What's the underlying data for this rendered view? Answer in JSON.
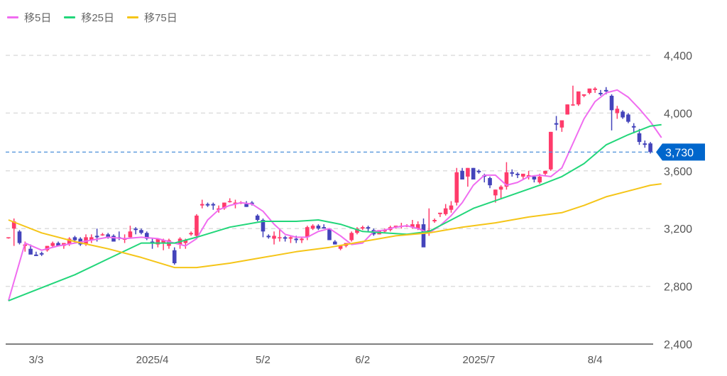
{
  "legend": [
    {
      "label": "移5日",
      "color": "#f06cf0"
    },
    {
      "label": "移25日",
      "color": "#22d67a"
    },
    {
      "label": "移75日",
      "color": "#f5c518"
    }
  ],
  "colors": {
    "up": "#ff3b6b",
    "down": "#4444bb",
    "grid": "#dddddd",
    "axis": "#555555",
    "current": "#0066cc",
    "current_line": "#4a90d9"
  },
  "current_price": {
    "value": 3730,
    "label": "3,730"
  },
  "chart_data": {
    "type": "candlestick",
    "title": "",
    "ylim": [
      2400,
      4400
    ],
    "yticks": [
      2400,
      2800,
      3200,
      3600,
      4000,
      4400
    ],
    "ytick_labels": [
      "2,400",
      "2,800",
      "3,200",
      "3,600",
      "4,000",
      "4,400"
    ],
    "xtick_labels": [
      {
        "label": "3/3",
        "index": 5
      },
      {
        "label": "2025/4",
        "index": 26
      },
      {
        "label": "5/2",
        "index": 46
      },
      {
        "label": "6/2",
        "index": 64
      },
      {
        "label": "2025/7",
        "index": 85
      },
      {
        "label": "8/4",
        "index": 106
      }
    ],
    "grid": true,
    "legend_position": "top-left",
    "candles": [
      [
        3140,
        3140,
        3130,
        3140
      ],
      [
        3200,
        3270,
        3080,
        3250
      ],
      [
        3180,
        3190,
        3090,
        3100
      ],
      [
        3080,
        3110,
        3040,
        3090
      ],
      [
        3060,
        3090,
        3030,
        3020
      ],
      [
        3020,
        3040,
        3010,
        3010
      ],
      [
        3030,
        3040,
        3010,
        3020
      ],
      [
        3050,
        3080,
        3040,
        3080
      ],
      [
        3080,
        3110,
        3070,
        3100
      ],
      [
        3100,
        3110,
        3080,
        3080
      ],
      [
        3080,
        3100,
        3060,
        3100
      ],
      [
        3090,
        3140,
        3080,
        3130
      ],
      [
        3140,
        3150,
        3100,
        3120
      ],
      [
        3130,
        3140,
        3080,
        3090
      ],
      [
        3090,
        3160,
        3080,
        3140
      ],
      [
        3120,
        3160,
        3100,
        3140
      ],
      [
        3150,
        3200,
        3110,
        3140
      ],
      [
        3160,
        3170,
        3150,
        3160
      ],
      [
        3160,
        3170,
        3130,
        3140
      ],
      [
        3150,
        3160,
        3110,
        3110
      ],
      [
        3140,
        3180,
        3120,
        3130
      ],
      [
        3130,
        3160,
        3100,
        3130
      ],
      [
        3140,
        3220,
        3130,
        3180
      ],
      [
        3200,
        3210,
        3160,
        3190
      ],
      [
        3190,
        3200,
        3160,
        3170
      ],
      [
        3170,
        3180,
        3120,
        3130
      ],
      [
        3110,
        3130,
        3060,
        3100
      ],
      [
        3090,
        3130,
        3070,
        3130
      ],
      [
        3100,
        3130,
        3050,
        3120
      ],
      [
        3080,
        3130,
        3060,
        3120
      ],
      [
        3050,
        3070,
        2950,
        2960
      ],
      [
        3090,
        3140,
        3060,
        3130
      ],
      [
        3100,
        3130,
        3060,
        3120
      ],
      [
        3160,
        3180,
        3150,
        3170
      ],
      [
        3150,
        3300,
        3140,
        3290
      ],
      [
        3360,
        3400,
        3340,
        3370
      ],
      [
        3370,
        3380,
        3350,
        3360
      ],
      [
        3370,
        3380,
        3330,
        3360
      ],
      [
        3330,
        3360,
        3310,
        3340
      ],
      [
        3340,
        3380,
        3330,
        3380
      ],
      [
        3390,
        3410,
        3380,
        3390
      ],
      [
        3380,
        3400,
        3340,
        3380
      ],
      [
        3380,
        3390,
        3370,
        3380
      ],
      [
        3370,
        3390,
        3350,
        3350
      ],
      [
        3380,
        3390,
        3360,
        3370
      ],
      [
        3290,
        3300,
        3250,
        3260
      ],
      [
        3260,
        3270,
        3140,
        3180
      ],
      [
        3150,
        3160,
        3130,
        3140
      ],
      [
        3130,
        3180,
        3090,
        3150
      ],
      [
        3140,
        3200,
        3110,
        3140
      ],
      [
        3140,
        3150,
        3110,
        3130
      ],
      [
        3130,
        3150,
        3100,
        3140
      ],
      [
        3130,
        3150,
        3100,
        3120
      ],
      [
        3120,
        3140,
        3100,
        3130
      ],
      [
        3140,
        3220,
        3120,
        3210
      ],
      [
        3200,
        3230,
        3190,
        3220
      ],
      [
        3220,
        3230,
        3190,
        3200
      ],
      [
        3210,
        3230,
        3200,
        3200
      ],
      [
        3200,
        3200,
        3120,
        3120
      ],
      [
        3110,
        3120,
        3090,
        3090
      ],
      [
        3060,
        3080,
        3050,
        3080
      ],
      [
        3080,
        3100,
        3070,
        3100
      ],
      [
        3120,
        3180,
        3110,
        3170
      ],
      [
        3170,
        3210,
        3160,
        3200
      ],
      [
        3200,
        3220,
        3190,
        3210
      ],
      [
        3210,
        3220,
        3180,
        3200
      ],
      [
        3190,
        3200,
        3150,
        3160
      ],
      [
        3160,
        3170,
        3160,
        3190
      ],
      [
        3180,
        3200,
        3170,
        3190
      ],
      [
        3190,
        3220,
        3180,
        3210
      ],
      [
        3210,
        3220,
        3200,
        3220
      ],
      [
        3220,
        3240,
        3200,
        3220
      ],
      [
        3220,
        3230,
        3210,
        3220
      ],
      [
        3210,
        3260,
        3200,
        3230
      ],
      [
        3200,
        3250,
        3190,
        3230
      ],
      [
        3230,
        3270,
        3170,
        3070
      ],
      [
        3180,
        3340,
        3150,
        3190
      ],
      [
        3250,
        3270,
        3240,
        3260
      ],
      [
        3300,
        3300,
        3280,
        3310
      ],
      [
        3300,
        3370,
        3290,
        3340
      ],
      [
        3330,
        3390,
        3310,
        3360
      ],
      [
        3380,
        3620,
        3360,
        3590
      ],
      [
        3600,
        3620,
        3540,
        3540
      ],
      [
        3560,
        3620,
        3490,
        3620
      ],
      [
        3620,
        3620,
        3540,
        3540
      ],
      [
        3600,
        3610,
        3580,
        3590
      ],
      [
        3570,
        3580,
        3520,
        3560
      ],
      [
        3550,
        3560,
        3480,
        3500
      ],
      [
        3430,
        3470,
        3380,
        3470
      ],
      [
        3470,
        3500,
        3410,
        3490
      ],
      [
        3490,
        3660,
        3470,
        3590
      ],
      [
        3590,
        3610,
        3560,
        3580
      ],
      [
        3580,
        3590,
        3550,
        3570
      ],
      [
        3560,
        3570,
        3540,
        3580
      ],
      [
        3560,
        3600,
        3540,
        3570
      ],
      [
        3560,
        3570,
        3520,
        3540
      ],
      [
        3520,
        3580,
        3510,
        3560
      ],
      [
        3580,
        3600,
        3570,
        3600
      ],
      [
        3610,
        3870,
        3600,
        3870
      ],
      [
        3930,
        3980,
        3880,
        3920
      ],
      [
        3900,
        3930,
        3870,
        3950
      ],
      [
        3990,
        4060,
        3990,
        4060
      ],
      [
        4060,
        4190,
        4050,
        4060
      ],
      [
        4060,
        4140,
        4050,
        4150
      ],
      [
        4120,
        4130,
        4110,
        4130
      ],
      [
        4140,
        4170,
        4130,
        4170
      ],
      [
        4160,
        4180,
        4140,
        4170
      ],
      [
        4140,
        4160,
        4120,
        4130
      ],
      [
        4160,
        4180,
        4130,
        4150
      ],
      [
        4120,
        4130,
        3880,
        4020
      ],
      [
        4000,
        4050,
        3960,
        4030
      ],
      [
        4010,
        4020,
        3960,
        3970
      ],
      [
        3990,
        4000,
        3930,
        3940
      ],
      [
        3910,
        3930,
        3860,
        3900
      ],
      [
        3860,
        3890,
        3780,
        3800
      ],
      [
        3790,
        3810,
        3760,
        3780
      ],
      [
        3790,
        3800,
        3720,
        3730
      ]
    ],
    "series": [
      {
        "name": "移5日",
        "color": "#f06cf0",
        "points": [
          [
            0,
            2700
          ],
          [
            3,
            3100
          ],
          [
            6,
            3050
          ],
          [
            9,
            3080
          ],
          [
            12,
            3100
          ],
          [
            15,
            3120
          ],
          [
            18,
            3140
          ],
          [
            21,
            3130
          ],
          [
            24,
            3140
          ],
          [
            27,
            3130
          ],
          [
            30,
            3100
          ],
          [
            32,
            3080
          ],
          [
            34,
            3130
          ],
          [
            36,
            3260
          ],
          [
            38,
            3330
          ],
          [
            40,
            3360
          ],
          [
            42,
            3380
          ],
          [
            44,
            3370
          ],
          [
            46,
            3320
          ],
          [
            48,
            3230
          ],
          [
            50,
            3160
          ],
          [
            52,
            3140
          ],
          [
            54,
            3140
          ],
          [
            56,
            3180
          ],
          [
            58,
            3200
          ],
          [
            60,
            3150
          ],
          [
            62,
            3090
          ],
          [
            64,
            3100
          ],
          [
            66,
            3180
          ],
          [
            68,
            3190
          ],
          [
            70,
            3210
          ],
          [
            72,
            3220
          ],
          [
            74,
            3200
          ],
          [
            76,
            3170
          ],
          [
            78,
            3220
          ],
          [
            80,
            3290
          ],
          [
            82,
            3380
          ],
          [
            84,
            3500
          ],
          [
            86,
            3570
          ],
          [
            88,
            3570
          ],
          [
            90,
            3500
          ],
          [
            92,
            3520
          ],
          [
            94,
            3560
          ],
          [
            96,
            3570
          ],
          [
            98,
            3560
          ],
          [
            100,
            3620
          ],
          [
            102,
            3790
          ],
          [
            104,
            3960
          ],
          [
            106,
            4080
          ],
          [
            108,
            4140
          ],
          [
            110,
            4160
          ],
          [
            112,
            4110
          ],
          [
            114,
            4030
          ],
          [
            116,
            3940
          ],
          [
            118,
            3830
          ]
        ]
      },
      {
        "name": "移25日",
        "color": "#22d67a",
        "points": [
          [
            0,
            2700
          ],
          [
            6,
            2790
          ],
          [
            12,
            2880
          ],
          [
            18,
            2990
          ],
          [
            24,
            3100
          ],
          [
            30,
            3100
          ],
          [
            34,
            3140
          ],
          [
            40,
            3210
          ],
          [
            46,
            3250
          ],
          [
            52,
            3250
          ],
          [
            56,
            3260
          ],
          [
            60,
            3230
          ],
          [
            64,
            3180
          ],
          [
            68,
            3170
          ],
          [
            72,
            3160
          ],
          [
            76,
            3180
          ],
          [
            80,
            3260
          ],
          [
            84,
            3340
          ],
          [
            90,
            3420
          ],
          [
            96,
            3500
          ],
          [
            100,
            3560
          ],
          [
            104,
            3650
          ],
          [
            108,
            3780
          ],
          [
            112,
            3850
          ],
          [
            116,
            3910
          ],
          [
            118,
            3920
          ]
        ]
      },
      {
        "name": "移75日",
        "color": "#f5c518",
        "points": [
          [
            0,
            3260
          ],
          [
            6,
            3170
          ],
          [
            12,
            3110
          ],
          [
            18,
            3060
          ],
          [
            24,
            3000
          ],
          [
            30,
            2930
          ],
          [
            34,
            2930
          ],
          [
            40,
            2960
          ],
          [
            46,
            3000
          ],
          [
            52,
            3040
          ],
          [
            58,
            3070
          ],
          [
            64,
            3110
          ],
          [
            70,
            3150
          ],
          [
            76,
            3170
          ],
          [
            82,
            3210
          ],
          [
            88,
            3240
          ],
          [
            94,
            3280
          ],
          [
            100,
            3310
          ],
          [
            104,
            3360
          ],
          [
            108,
            3420
          ],
          [
            112,
            3460
          ],
          [
            116,
            3500
          ],
          [
            118,
            3510
          ]
        ]
      }
    ]
  }
}
